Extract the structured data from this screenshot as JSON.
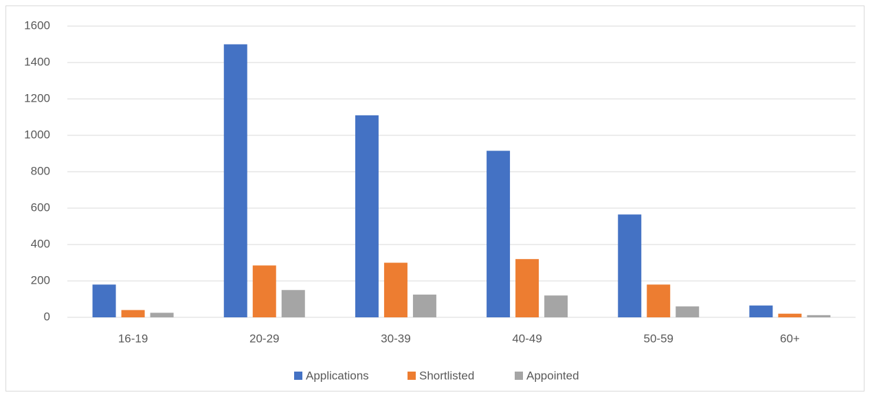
{
  "chart_data": {
    "type": "bar",
    "categories": [
      "16-19",
      "20-29",
      "30-39",
      "40-49",
      "50-59",
      "60+"
    ],
    "series": [
      {
        "name": "Applications",
        "color": "#4472c4",
        "values": [
          180,
          1500,
          1110,
          915,
          565,
          65
        ]
      },
      {
        "name": "Shortlisted",
        "color": "#ed7d31",
        "values": [
          40,
          285,
          300,
          320,
          180,
          20
        ]
      },
      {
        "name": "Appointed",
        "color": "#a5a5a5",
        "values": [
          25,
          150,
          125,
          120,
          60,
          12
        ]
      }
    ],
    "ylim": [
      0,
      1600
    ],
    "yticks": [
      0,
      200,
      400,
      600,
      800,
      1000,
      1200,
      1400,
      1600
    ],
    "grid": true,
    "legend": "bottom"
  }
}
